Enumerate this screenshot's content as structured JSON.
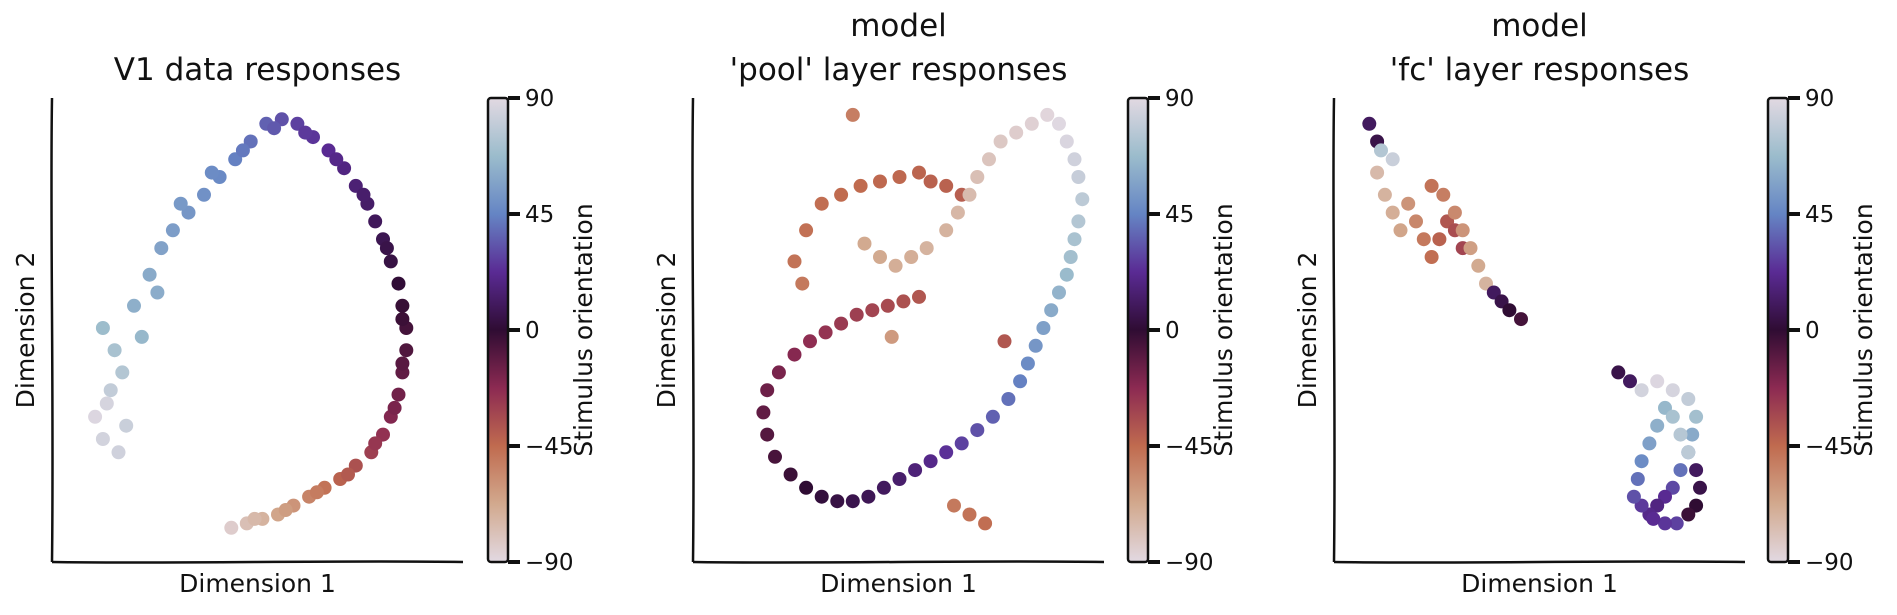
{
  "figure": {
    "colorbar_label": "Stimulus orientation",
    "colorbar_ticks": [
      "90",
      "45",
      "0",
      "−45",
      "−90"
    ],
    "colorbar_tick_values": [
      90,
      45,
      0,
      -45,
      -90
    ],
    "colormap": "twilight",
    "colormap_stops": [
      "#e2d9e2",
      "#d2a98e",
      "#c06b4f",
      "#8c2a52",
      "#2f0c33",
      "#5a2b94",
      "#6585c4",
      "#9bbccc",
      "#e2d9e2"
    ]
  },
  "chart_data": [
    {
      "type": "scatter",
      "title": "V1 data responses",
      "xlabel": "Dimension 1",
      "ylabel": "Dimension 2",
      "grid": false,
      "clim": [
        -90,
        90
      ],
      "points": [
        [
          8,
          30,
          88
        ],
        [
          10,
          25,
          85
        ],
        [
          12,
          36,
          80
        ],
        [
          14,
          22,
          84
        ],
        [
          15,
          40,
          75
        ],
        [
          13,
          45,
          72
        ],
        [
          10,
          50,
          68
        ],
        [
          18,
          55,
          62
        ],
        [
          22,
          62,
          60
        ],
        [
          25,
          68,
          57
        ],
        [
          28,
          72,
          55
        ],
        [
          32,
          76,
          52
        ],
        [
          36,
          80,
          50
        ],
        [
          40,
          84,
          47
        ],
        [
          44,
          88,
          44
        ],
        [
          48,
          92,
          40
        ],
        [
          52,
          96,
          36
        ],
        [
          56,
          97,
          32
        ],
        [
          60,
          96,
          28
        ],
        [
          64,
          93,
          25
        ],
        [
          68,
          90,
          22
        ],
        [
          72,
          86,
          18
        ],
        [
          75,
          82,
          15
        ],
        [
          78,
          78,
          12
        ],
        [
          80,
          74,
          9
        ],
        [
          82,
          70,
          7
        ],
        [
          84,
          65,
          4
        ],
        [
          86,
          60,
          1
        ],
        [
          87,
          55,
          -2
        ],
        [
          88,
          50,
          -5
        ],
        [
          88,
          45,
          -8
        ],
        [
          87,
          40,
          -12
        ],
        [
          86,
          35,
          -16
        ],
        [
          84,
          30,
          -20
        ],
        [
          82,
          26,
          -25
        ],
        [
          79,
          22,
          -30
        ],
        [
          75,
          19,
          -36
        ],
        [
          71,
          16,
          -42
        ],
        [
          67,
          14,
          -48
        ],
        [
          63,
          12,
          -54
        ],
        [
          59,
          10,
          -60
        ],
        [
          55,
          8,
          -66
        ],
        [
          51,
          7,
          -72
        ],
        [
          47,
          6,
          -78
        ],
        [
          43,
          5,
          -84
        ],
        [
          11,
          33,
          86
        ],
        [
          16,
          28,
          82
        ],
        [
          20,
          48,
          66
        ],
        [
          24,
          58,
          61
        ],
        [
          30,
          78,
          53
        ],
        [
          38,
          85,
          48
        ],
        [
          46,
          90,
          42
        ],
        [
          54,
          95,
          34
        ],
        [
          62,
          94,
          26
        ],
        [
          70,
          88,
          20
        ],
        [
          77,
          80,
          13
        ],
        [
          83,
          68,
          5
        ],
        [
          87,
          52,
          -3
        ],
        [
          87,
          42,
          -10
        ],
        [
          85,
          32,
          -18
        ],
        [
          80,
          24,
          -27
        ],
        [
          73,
          17,
          -39
        ],
        [
          65,
          13,
          -51
        ],
        [
          57,
          9,
          -63
        ],
        [
          49,
          7,
          -75
        ]
      ]
    },
    {
      "type": "scatter",
      "title": "model\n'pool' layer responses",
      "xlabel": "Dimension 1",
      "ylabel": "Dimension 2",
      "grid": false,
      "clim": [
        -90,
        90
      ],
      "points": [
        [
          38,
          98,
          -52
        ],
        [
          25,
          60,
          -50
        ],
        [
          23,
          65,
          -48
        ],
        [
          26,
          72,
          -47
        ],
        [
          30,
          78,
          -46
        ],
        [
          35,
          80,
          -45
        ],
        [
          40,
          82,
          -45
        ],
        [
          45,
          83,
          -44
        ],
        [
          50,
          84,
          -44
        ],
        [
          55,
          85,
          -43
        ],
        [
          58,
          83,
          -42
        ],
        [
          62,
          82,
          -42
        ],
        [
          66,
          80,
          -41
        ],
        [
          41,
          69,
          -68
        ],
        [
          45,
          66,
          -68
        ],
        [
          49,
          64,
          -70
        ],
        [
          53,
          66,
          -70
        ],
        [
          57,
          68,
          -72
        ],
        [
          62,
          72,
          -72
        ],
        [
          65,
          76,
          -74
        ],
        [
          68,
          80,
          -76
        ],
        [
          70,
          84,
          -78
        ],
        [
          73,
          88,
          -80
        ],
        [
          76,
          92,
          -82
        ],
        [
          80,
          94,
          -84
        ],
        [
          84,
          96,
          -86
        ],
        [
          88,
          98,
          -88
        ],
        [
          91,
          96,
          89
        ],
        [
          93,
          92,
          87
        ],
        [
          95,
          88,
          84
        ],
        [
          96,
          84,
          81
        ],
        [
          97,
          79,
          78
        ],
        [
          96,
          74,
          75
        ],
        [
          95,
          70,
          72
        ],
        [
          94,
          66,
          70
        ],
        [
          93,
          62,
          67
        ],
        [
          91,
          58,
          64
        ],
        [
          89,
          54,
          60
        ],
        [
          87,
          50,
          56
        ],
        [
          85,
          46,
          52
        ],
        [
          83,
          42,
          48
        ],
        [
          81,
          38,
          44
        ],
        [
          78,
          34,
          40
        ],
        [
          74,
          30,
          36
        ],
        [
          70,
          27,
          32
        ],
        [
          66,
          24,
          28
        ],
        [
          62,
          22,
          24
        ],
        [
          58,
          20,
          20
        ],
        [
          54,
          18,
          16
        ],
        [
          50,
          16,
          13
        ],
        [
          46,
          14,
          10
        ],
        [
          42,
          12,
          8
        ],
        [
          38,
          11,
          6
        ],
        [
          34,
          11,
          4
        ],
        [
          30,
          12,
          2
        ],
        [
          26,
          14,
          0
        ],
        [
          22,
          17,
          -3
        ],
        [
          18,
          21,
          -6
        ],
        [
          16,
          26,
          -9
        ],
        [
          15,
          31,
          -12
        ],
        [
          16,
          36,
          -15
        ],
        [
          19,
          40,
          -18
        ],
        [
          23,
          44,
          -21
        ],
        [
          27,
          47,
          -24
        ],
        [
          31,
          49,
          -26
        ],
        [
          35,
          51,
          -28
        ],
        [
          39,
          53,
          -30
        ],
        [
          43,
          54,
          -32
        ],
        [
          47,
          55,
          -34
        ],
        [
          51,
          56,
          -36
        ],
        [
          55,
          57,
          -38
        ],
        [
          48,
          48,
          -62
        ],
        [
          77,
          47,
          -38
        ],
        [
          64,
          10,
          -50
        ],
        [
          68,
          8,
          -48
        ],
        [
          72,
          6,
          -46
        ]
      ]
    },
    {
      "type": "scatter",
      "title": "model\n'fc' layer responses",
      "xlabel": "Dimension 1",
      "ylabel": "Dimension 2",
      "grid": false,
      "clim": [
        -90,
        90
      ],
      "points": [
        [
          6,
          96,
          10
        ],
        [
          8,
          92,
          5
        ],
        [
          9,
          90,
          75
        ],
        [
          12,
          88,
          82
        ],
        [
          8,
          85,
          -75
        ],
        [
          10,
          80,
          -72
        ],
        [
          12,
          76,
          -70
        ],
        [
          14,
          72,
          -66
        ],
        [
          16,
          78,
          -60
        ],
        [
          18,
          74,
          -55
        ],
        [
          20,
          70,
          -50
        ],
        [
          22,
          66,
          -46
        ],
        [
          24,
          70,
          -42
        ],
        [
          26,
          74,
          -38
        ],
        [
          28,
          72,
          -35
        ],
        [
          30,
          68,
          -32
        ],
        [
          22,
          82,
          -48
        ],
        [
          25,
          80,
          -52
        ],
        [
          28,
          76,
          -56
        ],
        [
          30,
          72,
          -60
        ],
        [
          32,
          68,
          -64
        ],
        [
          34,
          64,
          -68
        ],
        [
          36,
          60,
          -72
        ],
        [
          38,
          58,
          10
        ],
        [
          40,
          56,
          5
        ],
        [
          42,
          54,
          0
        ],
        [
          45,
          52,
          -5
        ],
        [
          70,
          40,
          5
        ],
        [
          73,
          38,
          10
        ],
        [
          76,
          36,
          85
        ],
        [
          80,
          38,
          88
        ],
        [
          84,
          36,
          86
        ],
        [
          88,
          34,
          80
        ],
        [
          90,
          30,
          70
        ],
        [
          89,
          26,
          60
        ],
        [
          88,
          22,
          50
        ],
        [
          86,
          18,
          40
        ],
        [
          84,
          14,
          30
        ],
        [
          82,
          12,
          22
        ],
        [
          80,
          10,
          18
        ],
        [
          78,
          8,
          20
        ],
        [
          76,
          10,
          26
        ],
        [
          74,
          12,
          32
        ],
        [
          75,
          16,
          40
        ],
        [
          76,
          20,
          48
        ],
        [
          78,
          24,
          56
        ],
        [
          80,
          28,
          62
        ],
        [
          82,
          32,
          66
        ],
        [
          84,
          30,
          72
        ],
        [
          86,
          26,
          76
        ],
        [
          88,
          22,
          78
        ],
        [
          90,
          18,
          10
        ],
        [
          91,
          14,
          5
        ],
        [
          90,
          10,
          0
        ],
        [
          88,
          8,
          -3
        ],
        [
          85,
          6,
          28
        ],
        [
          82,
          6,
          25
        ],
        [
          79,
          7,
          22
        ]
      ]
    }
  ]
}
